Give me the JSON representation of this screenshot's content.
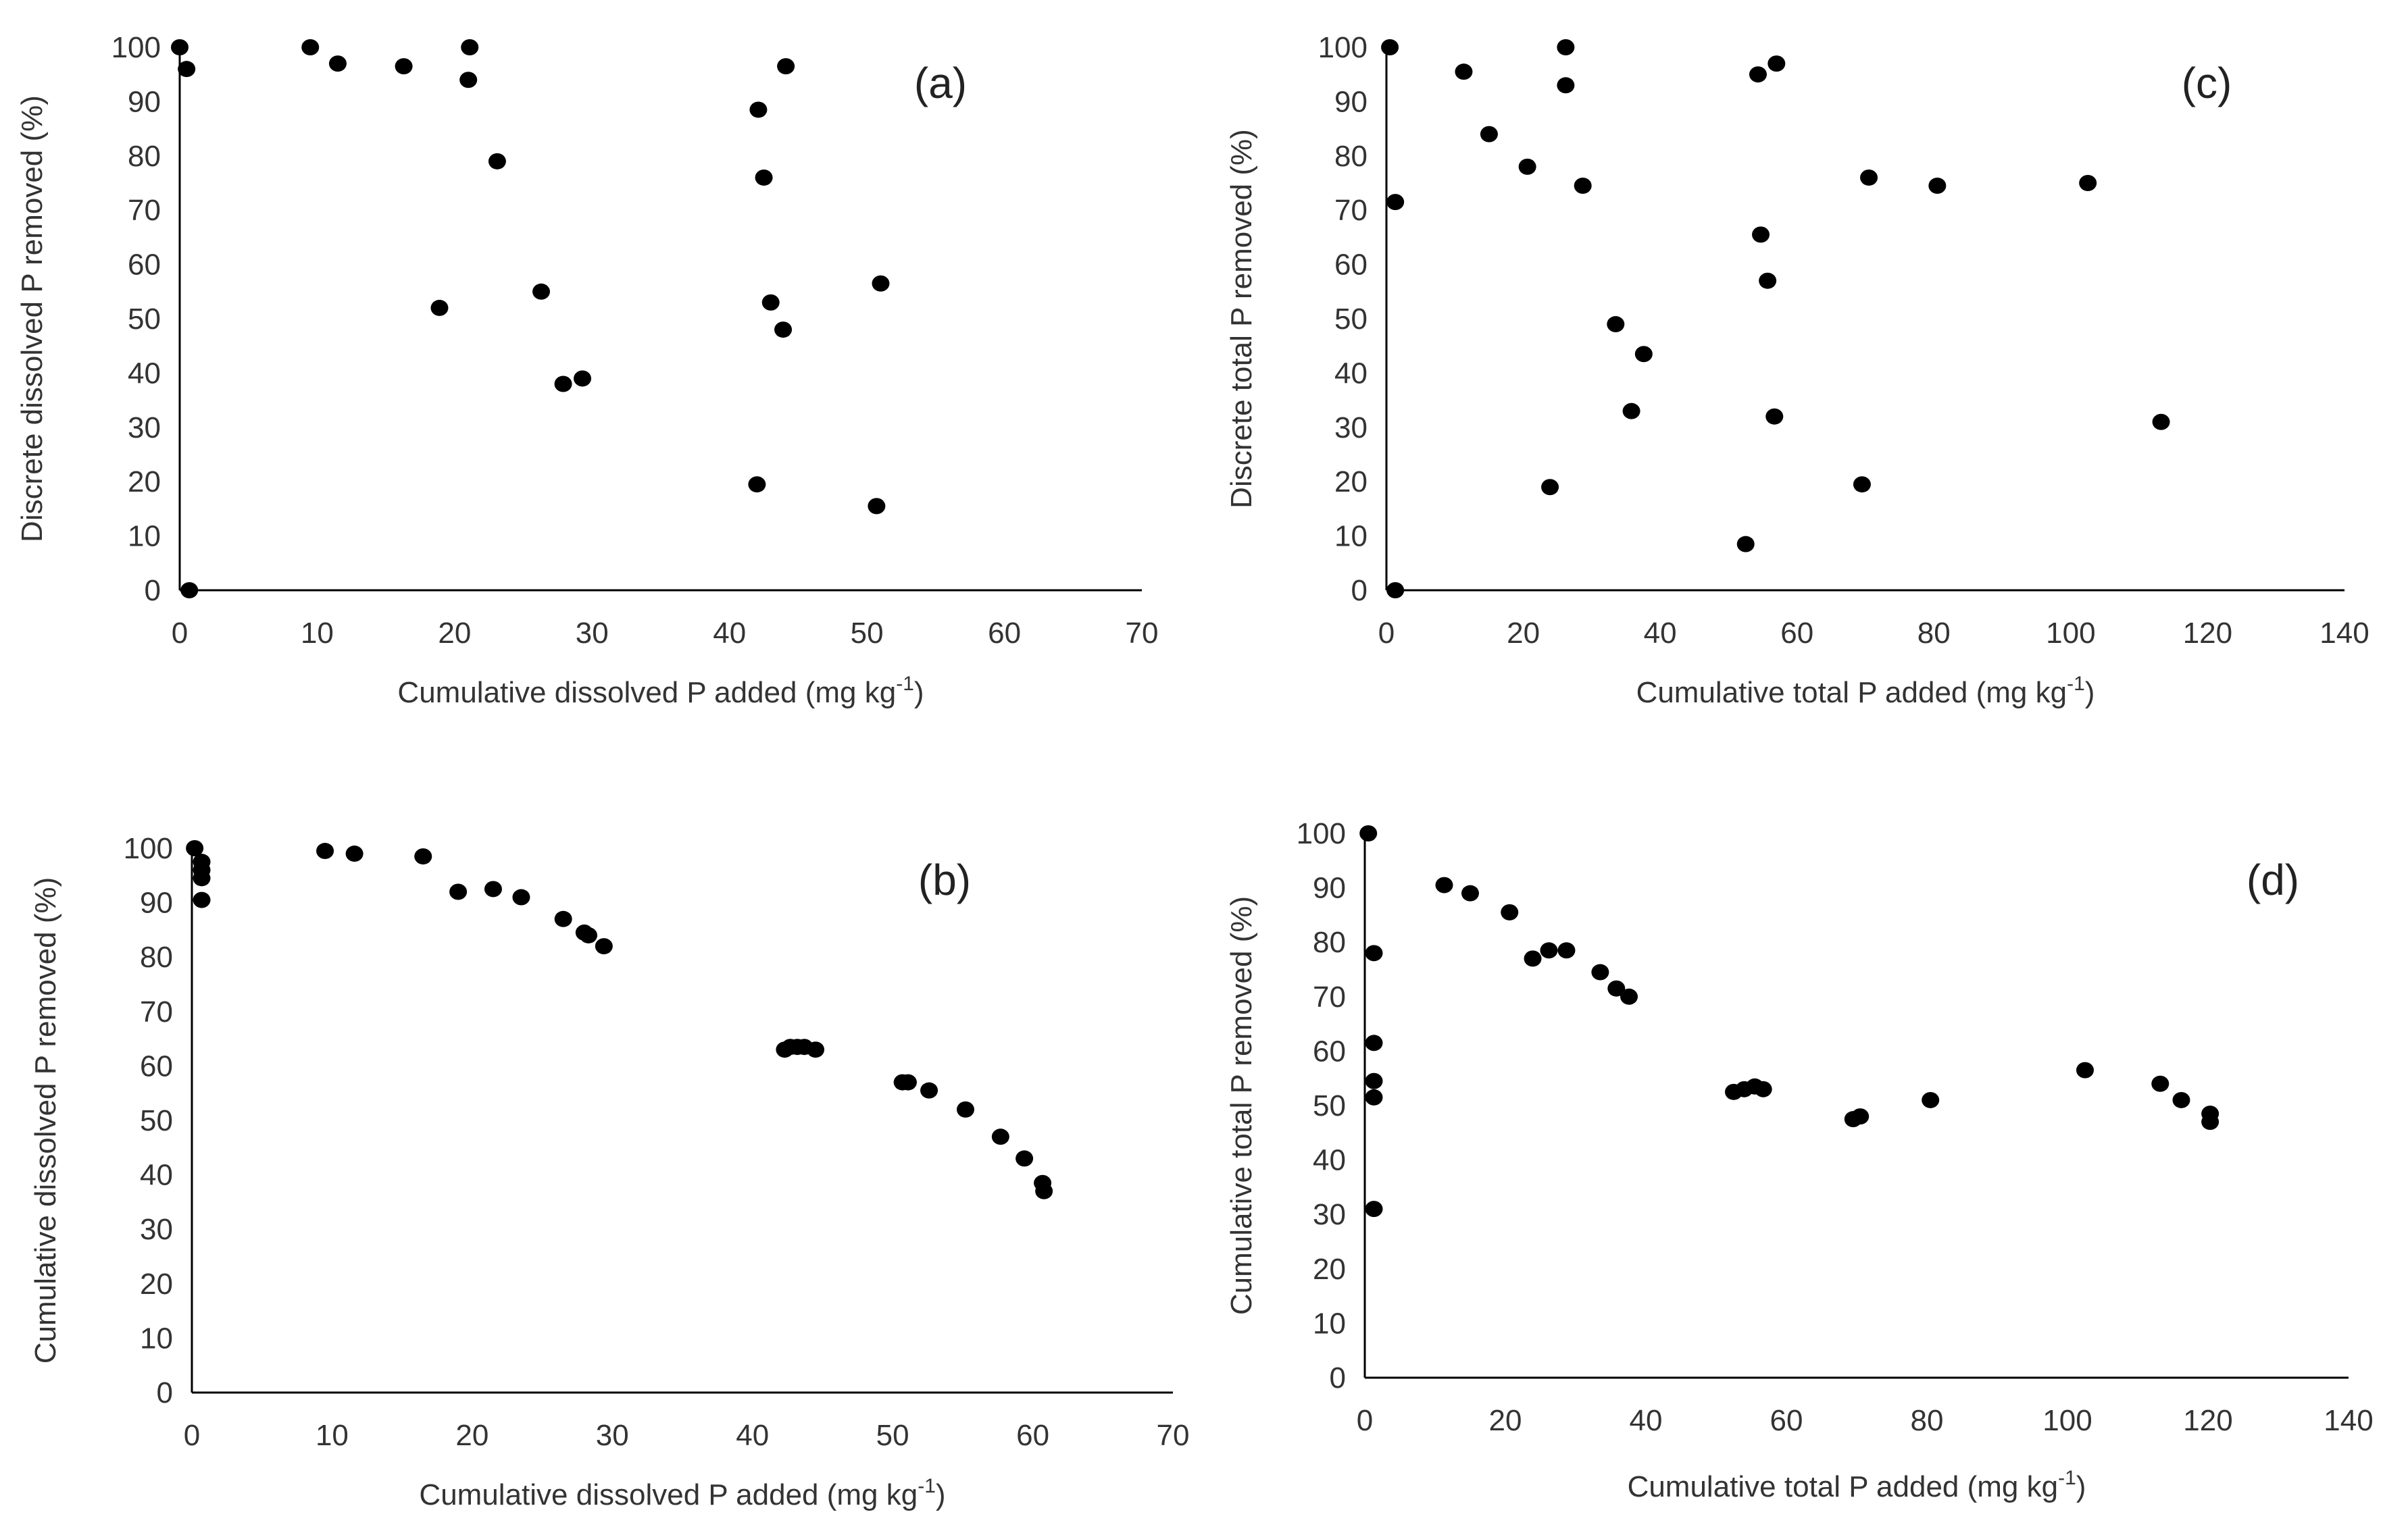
{
  "figure": {
    "dot_color": "#000000",
    "axis_color": "#000000",
    "text_color": "#333333"
  },
  "chart_data": [
    {
      "id": "a",
      "type": "scatter",
      "panel_label": "(a)",
      "xlabel": "Cumulative dissolved P added (mg kg",
      "xlabel_sup": "-1",
      "xlabel_end": ")",
      "ylabel": "Discrete dissolved P removed (%)",
      "xlim": [
        0,
        70
      ],
      "ylim": [
        0,
        100
      ],
      "xticks": [
        0,
        10,
        20,
        30,
        40,
        50,
        60,
        70
      ],
      "yticks": [
        0,
        10,
        20,
        30,
        40,
        50,
        60,
        70,
        80,
        90,
        100
      ],
      "x": [
        0,
        0.5,
        0.7,
        9.5,
        11.5,
        16.3,
        21,
        21.1,
        23.1,
        18.9,
        26.3,
        27.9,
        29.3,
        42.1,
        42.5,
        43,
        43.9,
        44.1,
        42,
        51,
        50.7
      ],
      "y": [
        100,
        96,
        0,
        100,
        97,
        96.5,
        94,
        100,
        79,
        52,
        55,
        38,
        39,
        88.5,
        76,
        53,
        48,
        96.5,
        19.5,
        56.5,
        15.5
      ]
    },
    {
      "id": "b",
      "type": "scatter",
      "panel_label": "(b)",
      "xlabel": "Cumulative dissolved P added (mg kg",
      "xlabel_sup": "-1",
      "xlabel_end": ")",
      "ylabel": "Cumulative dissolved P removed (%)",
      "xlim": [
        0,
        70
      ],
      "ylim": [
        0,
        100
      ],
      "xticks": [
        0,
        10,
        20,
        30,
        40,
        50,
        60,
        70
      ],
      "yticks": [
        0,
        10,
        20,
        30,
        40,
        50,
        60,
        70,
        80,
        90,
        100
      ],
      "x": [
        0.2,
        0.7,
        0.7,
        0.7,
        0.7,
        9.5,
        11.6,
        16.5,
        19,
        21.5,
        23.5,
        26.5,
        28,
        28.3,
        29.4,
        42.3,
        42.7,
        43.2,
        43.7,
        44.5,
        50.7,
        51.1,
        52.6,
        55.2,
        57.7,
        59.4,
        60.7,
        60.8
      ],
      "y": [
        100,
        97.5,
        96,
        94.5,
        90.5,
        99.5,
        99,
        98.5,
        92,
        92.5,
        91,
        87,
        84.5,
        84,
        82,
        63,
        63.5,
        63.5,
        63.5,
        63,
        57,
        57,
        55.5,
        52,
        47,
        43,
        38.5,
        37
      ]
    },
    {
      "id": "c",
      "type": "scatter",
      "panel_label": "(c)",
      "xlabel": "Cumulative total P added (mg kg",
      "xlabel_sup": "-1",
      "xlabel_end": ")",
      "ylabel": "Discrete total P removed (%)",
      "xlim": [
        0,
        140
      ],
      "ylim": [
        0,
        100
      ],
      "xticks": [
        0,
        20,
        40,
        60,
        80,
        100,
        120,
        140
      ],
      "yticks": [
        0,
        10,
        20,
        30,
        40,
        50,
        60,
        70,
        80,
        90,
        100
      ],
      "x": [
        0.5,
        1.3,
        1.3,
        11.3,
        15,
        20.6,
        23.9,
        26.2,
        26.2,
        28.7,
        33.5,
        35.8,
        37.6,
        52.5,
        54.3,
        54.7,
        55.7,
        56.7,
        57,
        69.5,
        70.5,
        80.5,
        102.5,
        113.2
      ],
      "y": [
        100,
        71.5,
        0,
        95.5,
        84,
        78,
        19,
        93,
        100,
        74.5,
        49,
        33,
        43.5,
        8.5,
        95,
        65.5,
        57,
        32,
        97,
        19.5,
        76,
        74.5,
        75,
        31
      ]
    },
    {
      "id": "d",
      "type": "scatter",
      "panel_label": "(d)",
      "xlabel": "Cumulative total P added (mg kg",
      "xlabel_sup": "-1",
      "xlabel_end": ")",
      "ylabel": "Cumulative total P removed (%)",
      "xlim": [
        0,
        140
      ],
      "ylim": [
        0,
        100
      ],
      "xticks": [
        0,
        20,
        40,
        60,
        80,
        100,
        120,
        140
      ],
      "yticks": [
        0,
        10,
        20,
        30,
        40,
        50,
        60,
        70,
        80,
        90,
        100
      ],
      "x": [
        0.5,
        1.3,
        1.3,
        1.3,
        1.3,
        1.3,
        11.3,
        15,
        20.6,
        23.9,
        26.2,
        28.7,
        33.5,
        35.8,
        37.6,
        52.5,
        54,
        55.5,
        56.7,
        69.5,
        70.5,
        80.5,
        102.5,
        113.2,
        116.2,
        120.3,
        120.3
      ],
      "y": [
        100,
        78,
        61.5,
        54.5,
        51.5,
        31,
        90.5,
        89,
        85.5,
        77,
        78.5,
        78.5,
        74.5,
        71.5,
        70,
        52.5,
        53,
        53.5,
        53,
        47.5,
        48,
        51,
        56.5,
        54,
        51,
        48.5,
        47
      ]
    }
  ]
}
